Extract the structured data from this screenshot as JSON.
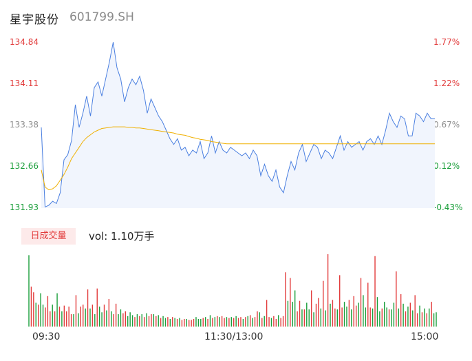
{
  "header": {
    "stock_name": "星宇股份",
    "stock_code": "601799.SH"
  },
  "price_axis": {
    "left_labels": [
      "134.84",
      "134.11",
      "133.38",
      "132.66",
      "131.93"
    ],
    "right_labels": [
      "1.77%",
      "1.22%",
      "0.67%",
      "0.12%",
      "-0.43%"
    ]
  },
  "volume_panel": {
    "badge": "日成交量",
    "vol_text": "vol: 1.10万手"
  },
  "time_axis": {
    "labels": [
      "09:30",
      "11:30/13:00",
      "15:00"
    ]
  },
  "colors": {
    "up": "#e23b3b",
    "down": "#1a9e3a",
    "price_line": "#4a7fe0",
    "avg_line": "#f0b000",
    "area_fill": "#f1f5fd",
    "neutral": "#8f8f8f"
  },
  "chart_data": [
    {
      "type": "line",
      "title": "",
      "xlabel": "",
      "ylabel": "",
      "ylim": [
        131.93,
        134.84
      ],
      "x_ticks": [
        "09:30",
        "11:30/13:00",
        "15:00"
      ],
      "series": [
        {
          "values": [
            133.35,
            131.95,
            131.98,
            132.05,
            132.01,
            132.2,
            132.78,
            132.87,
            133.12,
            133.75,
            133.35,
            133.6,
            133.9,
            133.55,
            134.05,
            134.15,
            133.9,
            134.2,
            134.5,
            134.85,
            134.4,
            134.2,
            133.8,
            134.05,
            134.2,
            134.1,
            134.25,
            134.0,
            133.6,
            133.85,
            133.7,
            133.55,
            133.45,
            133.3,
            133.15,
            133.05,
            133.15,
            132.95,
            133.0,
            132.85,
            132.95,
            132.9,
            133.1,
            132.8,
            132.9,
            133.2,
            132.9,
            133.1,
            132.95,
            132.9,
            133.0,
            132.95,
            132.9,
            132.85,
            132.9,
            132.8,
            132.95,
            132.85,
            132.5,
            132.7,
            132.5,
            132.4,
            132.6,
            132.3,
            132.2,
            132.5,
            132.75,
            132.6,
            132.9,
            133.05,
            132.75,
            132.9,
            133.05,
            133.0,
            132.8,
            132.95,
            132.9,
            132.8,
            133.0,
            133.2,
            132.95,
            133.1,
            133.0,
            133.05,
            133.1,
            132.95,
            133.1,
            133.15,
            133.05,
            133.2,
            133.05,
            133.3,
            133.6,
            133.45,
            133.35,
            133.55,
            133.5,
            133.2,
            133.2,
            133.6,
            133.55,
            133.45,
            133.6,
            133.5,
            133.5
          ],
          "color": "#4a7fe0"
        },
        {
          "values": [
            132.6,
            132.3,
            132.25,
            132.27,
            132.32,
            132.42,
            132.52,
            132.65,
            132.8,
            132.9,
            133.0,
            133.1,
            133.17,
            133.22,
            133.27,
            133.3,
            133.33,
            133.34,
            133.35,
            133.36,
            133.36,
            133.36,
            133.36,
            133.35,
            133.35,
            133.34,
            133.34,
            133.33,
            133.32,
            133.31,
            133.3,
            133.29,
            133.28,
            133.27,
            133.26,
            133.25,
            133.23,
            133.22,
            133.21,
            133.19,
            133.17,
            133.16,
            133.14,
            133.13,
            133.12,
            133.1,
            133.09,
            133.08,
            133.07,
            133.06,
            133.06,
            133.06,
            133.06,
            133.06,
            133.06,
            133.06,
            133.06,
            133.06,
            133.06,
            133.06,
            133.06,
            133.06,
            133.06,
            133.06,
            133.06,
            133.06,
            133.06,
            133.06,
            133.06,
            133.06,
            133.06,
            133.06,
            133.06,
            133.06,
            133.06,
            133.06,
            133.06,
            133.06,
            133.06,
            133.06,
            133.06,
            133.06,
            133.06,
            133.06,
            133.06,
            133.06,
            133.06,
            133.06,
            133.06,
            133.06,
            133.06,
            133.06,
            133.06,
            133.06,
            133.06,
            133.06,
            133.06,
            133.06,
            133.06,
            133.06,
            133.06,
            133.06,
            133.06,
            133.06,
            133.06
          ],
          "color": "#f0b000"
        }
      ]
    },
    {
      "type": "bar",
      "title": "",
      "series": [
        {
          "values": [
            7.5,
            4.2,
            3.6,
            2.5,
            2.3,
            3.5,
            2.3,
            2.0,
            3.2,
            1.6,
            2.3,
            1.6,
            3.5,
            2.1,
            1.6,
            2.2,
            1.6,
            2.1,
            1.3,
            1.3,
            3.3,
            1.4,
            2.1,
            2.3,
            1.9,
            3.9,
            1.9,
            2.3,
            1.3,
            4.0,
            2.1,
            1.5,
            2.3,
            1.7,
            2.9,
            1.6,
            1.3,
            2.4,
            1.3,
            1.8,
            1.4,
            1.6,
            1.1,
            1.5,
            1.2,
            1.0,
            1.3,
            1.1,
            1.3,
            1.0,
            1.4,
            1.1,
            1.3,
            1.3,
            1.1,
            1.2,
            0.9,
            1.1,
            0.9,
            1.0,
            0.8,
            1.0,
            0.9,
            0.8,
            0.9,
            0.7,
            0.8,
            0.8,
            0.7,
            0.7,
            0.8,
            1.0,
            0.8,
            0.8,
            0.9,
            1.0,
            0.8,
            1.2,
            0.9,
            1.0,
            1.1,
            1.0,
            1.1,
            0.9,
            1.0,
            0.9,
            1.0,
            0.9,
            1.1,
            0.9,
            1.0,
            0.8,
            1.0,
            1.1,
            1.2,
            0.9,
            1.0,
            1.6,
            1.5,
            0.9,
            1.1,
            2.8,
            1.0,
            0.9,
            1.1,
            0.8,
            1.2,
            0.9,
            1.1,
            5.7,
            2.7,
            5.1,
            2.6,
            3.8,
            1.6,
            2.7,
            1.8,
            1.8,
            2.5,
            1.8,
            3.8,
            1.5,
            2.4,
            3.0,
            1.9,
            4.8,
            1.7,
            7.6,
            2.4,
            2.8,
            1.9,
            1.8,
            5.4,
            2.0,
            2.6,
            2.1,
            2.8,
            1.8,
            3.2,
            2.2,
            2.5,
            5.1,
            3.3,
            2.0,
            4.6,
            2.0,
            1.9,
            7.4,
            3.1,
            1.6,
            1.9,
            2.6,
            2.0,
            1.8,
            1.8,
            2.5,
            5.8,
            1.9,
            3.4,
            2.4,
            1.6,
            2.1,
            2.5,
            1.7,
            3.3,
            1.4,
            2.2,
            1.5,
            1.9,
            1.4,
            1.9,
            2.6,
            1.4,
            1.5
          ],
          "directions": [
            "d",
            "u",
            "u",
            "d",
            "u",
            "d",
            "d",
            "u",
            "u",
            "u",
            "d",
            "u",
            "d",
            "u",
            "d",
            "u",
            "u",
            "u",
            "u",
            "d",
            "u",
            "d",
            "u",
            "u",
            "d",
            "u",
            "d",
            "u",
            "d",
            "u",
            "d",
            "d",
            "u",
            "d",
            "u",
            "d",
            "u",
            "u",
            "d",
            "d",
            "u",
            "u",
            "d",
            "d",
            "d",
            "u",
            "d",
            "u",
            "d",
            "u",
            "d",
            "u",
            "u",
            "d",
            "u",
            "d",
            "u",
            "d",
            "d",
            "u",
            "d",
            "u",
            "d",
            "u",
            "d",
            "u",
            "u",
            "d",
            "u",
            "u",
            "u",
            "d",
            "d",
            "d",
            "u",
            "d",
            "u",
            "d",
            "u",
            "d",
            "u",
            "d",
            "u",
            "u",
            "d",
            "u",
            "d",
            "u",
            "d",
            "u",
            "u",
            "d",
            "u",
            "d",
            "u",
            "d",
            "u",
            "u",
            "d",
            "u",
            "d",
            "u",
            "u",
            "d",
            "u",
            "u",
            "d",
            "u",
            "u",
            "u",
            "d",
            "u",
            "d",
            "d",
            "u",
            "u",
            "d",
            "u",
            "d",
            "d",
            "u",
            "d",
            "u",
            "u",
            "d",
            "u",
            "d",
            "u",
            "d",
            "u",
            "u",
            "d",
            "u",
            "u",
            "d",
            "d",
            "u",
            "d",
            "u",
            "u",
            "d",
            "u",
            "d",
            "d",
            "u",
            "u",
            "d",
            "u",
            "d",
            "d",
            "u",
            "d",
            "d",
            "u",
            "d",
            "d",
            "u",
            "d",
            "u",
            "d",
            "u",
            "d",
            "u",
            "d",
            "u",
            "u",
            "d",
            "u",
            "d",
            "u",
            "d",
            "u"
          ]
        }
      ]
    }
  ]
}
